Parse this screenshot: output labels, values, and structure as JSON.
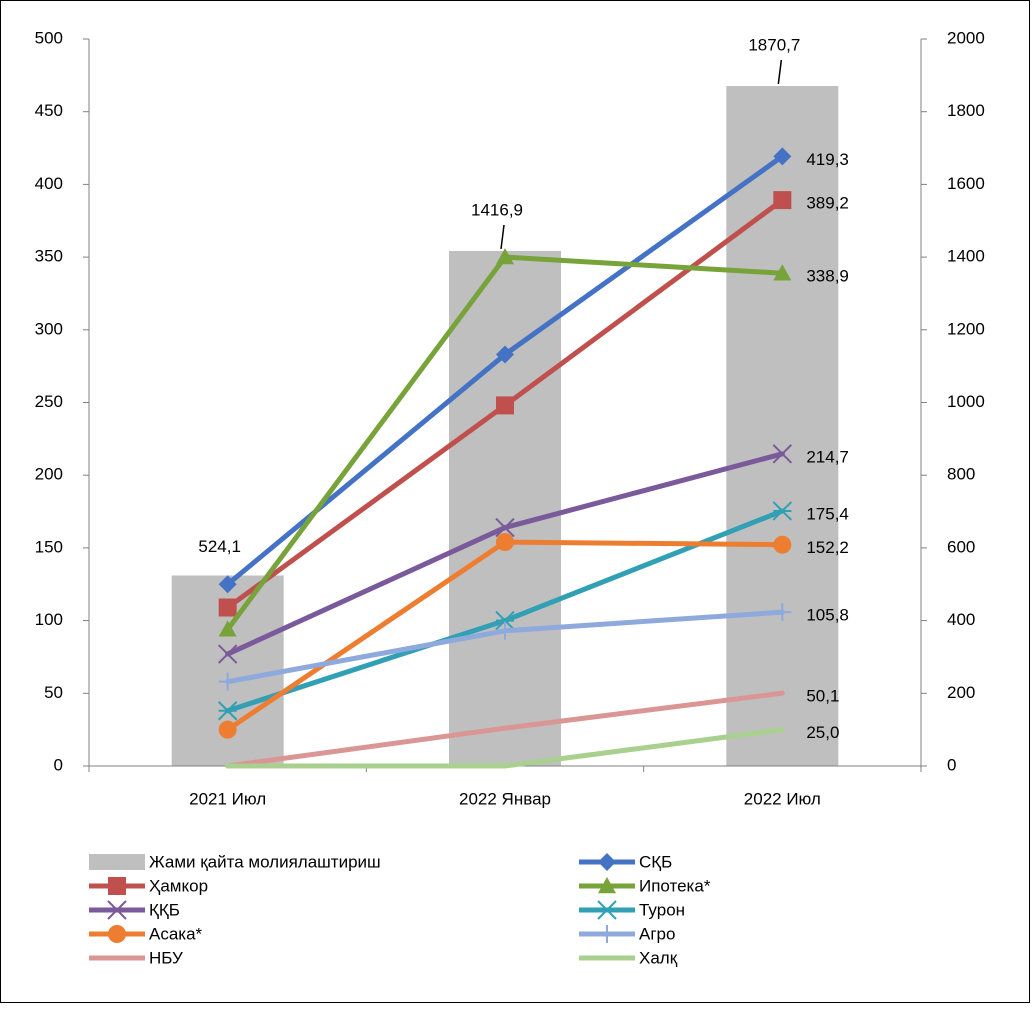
{
  "chart_data": {
    "type": "bar",
    "categories": [
      "2021 Июл",
      "2022 Январ",
      "2022 Июл"
    ],
    "y_left": {
      "min": 0,
      "max": 500,
      "step": 50,
      "ticks": [
        "0",
        "50",
        "100",
        "150",
        "200",
        "250",
        "300",
        "350",
        "400",
        "450",
        "500"
      ]
    },
    "y_right": {
      "min": 0,
      "max": 2000,
      "step": 200,
      "ticks": [
        "0",
        "200",
        "400",
        "600",
        "800",
        "1000",
        "1200",
        "1400",
        "1600",
        "1800",
        "2000"
      ]
    },
    "bar_series": {
      "name": "Жами қайта молиялаштириш",
      "axis": "right",
      "color": "#bfbfbf",
      "values": [
        524.1,
        1416.9,
        1870.7
      ],
      "labels": [
        "524,1",
        "1416,9",
        "1870,7"
      ]
    },
    "line_series": [
      {
        "name": "СҚБ",
        "color": "#4472c4",
        "marker": "diamond",
        "values": [
          125,
          283,
          419.3
        ],
        "end_label": "419,3"
      },
      {
        "name": "Ҳамкор",
        "color": "#c0504d",
        "marker": "square",
        "values": [
          109,
          248,
          389.2
        ],
        "end_label": "389,2"
      },
      {
        "name": "Ипотека*",
        "color": "#77a33a",
        "marker": "triangle",
        "values": [
          94,
          350,
          338.9
        ],
        "end_label": "338,9"
      },
      {
        "name": "ҚҚБ",
        "color": "#7a5a9a",
        "marker": "x",
        "values": [
          77,
          164,
          214.7
        ],
        "end_label": "214,7"
      },
      {
        "name": "Турон",
        "color": "#31a0b5",
        "marker": "asterisk",
        "values": [
          38,
          100,
          175.4
        ],
        "end_label": "175,4"
      },
      {
        "name": "Асака*",
        "color": "#ed7d31",
        "marker": "circle",
        "values": [
          25,
          154,
          152.2
        ],
        "end_label": "152,2"
      },
      {
        "name": "Агро",
        "color": "#8ea9db",
        "marker": "plus",
        "values": [
          58,
          93,
          105.8
        ],
        "end_label": "105,8"
      },
      {
        "name": "НБУ",
        "color": "#d99694",
        "marker": "none",
        "values": [
          0,
          26,
          50.1
        ],
        "end_label": "50,1"
      },
      {
        "name": "Халқ",
        "color": "#a9d08e",
        "marker": "none",
        "values": [
          0,
          0,
          25.0
        ],
        "end_label": "25,0"
      }
    ],
    "legend_position": "bottom",
    "grid": false
  }
}
